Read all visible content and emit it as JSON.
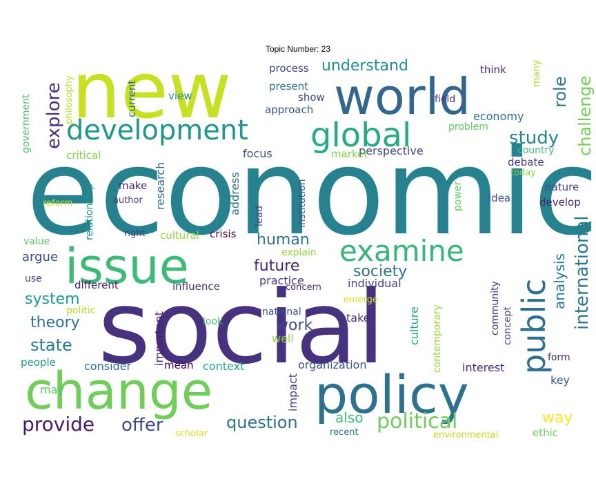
{
  "title": "Topic Number: 23",
  "colors": {
    "c1": "#440154",
    "c2": "#46327e",
    "c3": "#365c8d",
    "c4": "#277f8e",
    "c5": "#1fa187",
    "c6": "#4ac16d",
    "c7": "#a0da39",
    "c8": "#cde11d",
    "c9": "#fde725"
  },
  "words": [
    {
      "text": "economic",
      "color": "#26828e"
    },
    {
      "text": "social",
      "color": "#46327e"
    },
    {
      "text": "new",
      "color": "#c7e020"
    },
    {
      "text": "world",
      "color": "#31668e"
    },
    {
      "text": "change",
      "color": "#6ece58"
    },
    {
      "text": "policy",
      "color": "#2c728e"
    },
    {
      "text": "issue",
      "color": "#3bbb75"
    },
    {
      "text": "development",
      "color": "#1f978b"
    },
    {
      "text": "global",
      "color": "#25ab82"
    },
    {
      "text": "examine",
      "color": "#35b779"
    },
    {
      "text": "public",
      "color": "#2d708e"
    },
    {
      "text": "international",
      "color": "#2a788e"
    },
    {
      "text": "explore",
      "color": "#472f7d"
    },
    {
      "text": "study",
      "color": "#23888e"
    },
    {
      "text": "role",
      "color": "#2a788e"
    },
    {
      "text": "challenge",
      "color": "#73d056"
    },
    {
      "text": "understand",
      "color": "#21918c"
    },
    {
      "text": "process",
      "color": "#3e4989"
    },
    {
      "text": "think",
      "color": "#482677"
    },
    {
      "text": "many",
      "color": "#addc30"
    },
    {
      "text": "present",
      "color": "#2c728e"
    },
    {
      "text": "show",
      "color": "#404688"
    },
    {
      "text": "approach",
      "color": "#3b528b"
    },
    {
      "text": "field",
      "color": "#472d7b"
    },
    {
      "text": "economy",
      "color": "#2c728e"
    },
    {
      "text": "problem",
      "color": "#5ec962"
    },
    {
      "text": "country",
      "color": "#44bf70"
    },
    {
      "text": "view",
      "color": "#23898e"
    },
    {
      "text": "current",
      "color": "#2f6c8e"
    },
    {
      "text": "philosophy",
      "color": "#b5de2b"
    },
    {
      "text": "government",
      "color": "#50c46a"
    },
    {
      "text": "critical",
      "color": "#84d44b"
    },
    {
      "text": "focus",
      "color": "#3b528b"
    },
    {
      "text": "perspective",
      "color": "#3e4989"
    },
    {
      "text": "market",
      "color": "#84d44b"
    },
    {
      "text": "debate",
      "color": "#453781"
    },
    {
      "text": "today",
      "color": "#8bd646"
    },
    {
      "text": "make",
      "color": "#482878"
    },
    {
      "text": "research",
      "color": "#2f6c8e"
    },
    {
      "text": "address",
      "color": "#2c728e"
    },
    {
      "text": "institution",
      "color": "#3b528b"
    },
    {
      "text": "relationship",
      "color": "#21918c"
    },
    {
      "text": "author",
      "color": "#433e85"
    },
    {
      "text": "reform",
      "color": "#c2df23"
    },
    {
      "text": "power",
      "color": "#65cb5e"
    },
    {
      "text": "idea",
      "color": "#3b528b"
    },
    {
      "text": "nature",
      "color": "#3e4989"
    },
    {
      "text": "develop",
      "color": "#482475"
    },
    {
      "text": "lead",
      "color": "#433e85"
    },
    {
      "text": "right",
      "color": "#424086"
    },
    {
      "text": "cultural",
      "color": "#95d840"
    },
    {
      "text": "crisis",
      "color": "#450559"
    },
    {
      "text": "human",
      "color": "#2c728e"
    },
    {
      "text": "value",
      "color": "#5ec962"
    },
    {
      "text": "argue",
      "color": "#3e4989"
    },
    {
      "text": "future",
      "color": "#482173"
    },
    {
      "text": "explain",
      "color": "#93d741"
    },
    {
      "text": "society",
      "color": "#2c728e"
    },
    {
      "text": "use",
      "color": "#3f4788"
    },
    {
      "text": "different",
      "color": "#481f70"
    },
    {
      "text": "influence",
      "color": "#46337f"
    },
    {
      "text": "practice",
      "color": "#453882"
    },
    {
      "text": "concern",
      "color": "#472d7b"
    },
    {
      "text": "individual",
      "color": "#414487"
    },
    {
      "text": "analysis",
      "color": "#2a778e"
    },
    {
      "text": "system",
      "color": "#1e9b8a"
    },
    {
      "text": "politic",
      "color": "#b8de29"
    },
    {
      "text": "important",
      "color": "#482071"
    },
    {
      "text": "look",
      "color": "#48c16e"
    },
    {
      "text": "national",
      "color": "#3b528b"
    },
    {
      "text": "emerge",
      "color": "#d2e21b"
    },
    {
      "text": "contemporary",
      "color": "#95d840"
    },
    {
      "text": "community",
      "color": "#46327e"
    },
    {
      "text": "concept",
      "color": "#3b528b"
    },
    {
      "text": "theory",
      "color": "#2c728e"
    },
    {
      "text": "work",
      "color": "#3e4989"
    },
    {
      "text": "take",
      "color": "#482677"
    },
    {
      "text": "well",
      "color": "#8bd646"
    },
    {
      "text": "culture",
      "color": "#1fa188"
    },
    {
      "text": "state",
      "color": "#277f8e"
    },
    {
      "text": "people",
      "color": "#1e9b8a"
    },
    {
      "text": "consider",
      "color": "#2c728e"
    },
    {
      "text": "mean",
      "color": "#440154"
    },
    {
      "text": "context",
      "color": "#22a884"
    },
    {
      "text": "organization",
      "color": "#3b528b"
    },
    {
      "text": "impact",
      "color": "#3f4788"
    },
    {
      "text": "interest",
      "color": "#482878"
    },
    {
      "text": "form",
      "color": "#482576"
    },
    {
      "text": "key",
      "color": "#3a548c"
    },
    {
      "text": "may",
      "color": "#56c667"
    },
    {
      "text": "provide",
      "color": "#481a6c"
    },
    {
      "text": "offer",
      "color": "#3e4989"
    },
    {
      "text": "question",
      "color": "#2d708e"
    },
    {
      "text": "also",
      "color": "#3dbc74"
    },
    {
      "text": "political",
      "color": "#6ccd5a"
    },
    {
      "text": "way",
      "color": "#fde725"
    },
    {
      "text": "scholar",
      "color": "#dde318"
    },
    {
      "text": "recent",
      "color": "#2c728e"
    },
    {
      "text": "environmental",
      "color": "#bddf26"
    },
    {
      "text": "ethic",
      "color": "#73d056"
    }
  ]
}
